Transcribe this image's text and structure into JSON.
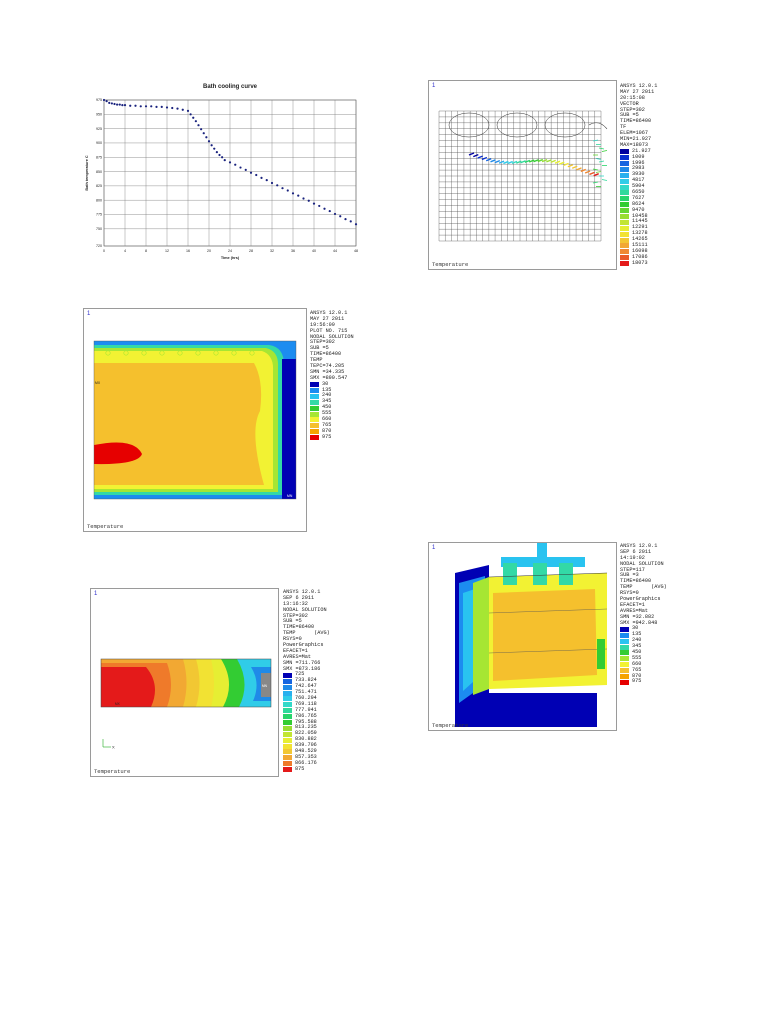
{
  "chart_data": {
    "type": "scatter",
    "title": "Bath cooling curve",
    "xlabel": "Time (hrs)",
    "ylabel": "Bath temperature C",
    "xlim": [
      0,
      48
    ],
    "ylim": [
      720,
      975
    ],
    "x_ticks": [
      0,
      4,
      8,
      12,
      16,
      20,
      24,
      28,
      32,
      36,
      40,
      44,
      48
    ],
    "y_ticks": [
      975,
      950,
      925,
      900,
      875,
      850,
      825,
      800,
      775,
      750,
      720
    ],
    "grid": true,
    "legend": "none",
    "series": [
      {
        "color": "#1a237e",
        "x": [
          0,
          0.5,
          1,
          1.5,
          2,
          2.5,
          3,
          3.5,
          4,
          5,
          6,
          7,
          8,
          9,
          10,
          11,
          12,
          13,
          14,
          15,
          16,
          16.5,
          17,
          17.5,
          18,
          18.5,
          19,
          19.5,
          20,
          20.5,
          21,
          21.5,
          22,
          22.5,
          23,
          24,
          25,
          26,
          27,
          28,
          29,
          30,
          31,
          32,
          33,
          34,
          35,
          36,
          37,
          38,
          39,
          40,
          41,
          42,
          43,
          44,
          45,
          46,
          47,
          48
        ],
        "y": [
          975,
          973,
          970,
          969,
          968,
          967,
          967,
          966,
          966,
          965,
          965,
          964,
          964,
          964,
          963,
          963,
          962,
          961,
          960,
          958,
          956,
          950,
          944,
          938,
          931,
          924,
          917,
          910,
          903,
          896,
          890,
          884,
          879,
          875,
          870,
          866,
          862,
          857,
          853,
          848,
          844,
          839,
          835,
          830,
          826,
          821,
          817,
          812,
          808,
          803,
          799,
          794,
          790,
          785,
          781,
          776,
          772,
          767,
          763,
          758
        ]
      }
    ]
  },
  "panels": {
    "vector": {
      "corner_mark": "1",
      "header": [
        "ANSYS 12.0.1",
        "MAY 27 2011",
        "20:15:08",
        "VECTOR",
        "STEP=302",
        "SUB =5",
        "TIME=86400",
        "TF",
        "ELEM=1067",
        "MIN=21.927",
        "MAX=18073"
      ],
      "levels": [
        "21.927",
        "1009",
        "1996",
        "2983",
        "3930",
        "4817",
        "5904",
        "6650",
        "7627",
        "8624",
        "9470",
        "10458",
        "11445",
        "12291",
        "13278",
        "14265",
        "15111",
        "16098",
        "17086",
        "18073"
      ],
      "colors": [
        "#0000a0",
        "#0a2fd0",
        "#1565e0",
        "#1f8ae8",
        "#29b0ee",
        "#30cce8",
        "#33d9c8",
        "#2fd99b",
        "#28d56b",
        "#33cc33",
        "#66d633",
        "#99dd33",
        "#c2e533",
        "#e6ee33",
        "#f2e233",
        "#f2c733",
        "#f2a833",
        "#ef8833",
        "#ea5a2a",
        "#e41a1a"
      ],
      "caption": "Temperature"
    },
    "nodal1": {
      "corner_mark": "1",
      "header": [
        "ANSYS 12.0.1",
        "MAY 27 2011",
        "19:56:09",
        "PLOT NO. 715",
        "NODAL SOLUTION",
        "STEP=302",
        "SUB =5",
        "TIME=86400",
        "TEMP",
        "TEPC=74.205",
        "SMN =34.335",
        "SMX =890.547"
      ],
      "levels": [
        "30",
        "135",
        "240",
        "345",
        "450",
        "555",
        "660",
        "765",
        "870",
        "975"
      ],
      "colors": [
        "#0000b4",
        "#1c8cf0",
        "#29c3f0",
        "#33d9a6",
        "#33cc33",
        "#a6e633",
        "#f2f233",
        "#f5c02d",
        "#f5a300",
        "#e60000"
      ],
      "mx_label": "MX",
      "mn_label": "MN",
      "caption": "Temperature"
    },
    "nodal2": {
      "corner_mark": "1",
      "header": [
        "ANSYS 12.0.1",
        "SEP 6 2011",
        "13:16:32",
        "NODAL SOLUTION",
        "STEP=302",
        "SUB =5",
        "TIME=86400",
        "TEMP      (AVG)",
        "RSYS=0",
        "PowerGraphics",
        "EFACET=1",
        "AVRES=Mat",
        "SMN =711.766",
        "SMX =873.186"
      ],
      "levels": [
        "725",
        "733.824",
        "742.647",
        "751.471",
        "760.294",
        "769.118",
        "777.941",
        "786.765",
        "795.588",
        "813.235",
        "822.059",
        "830.882",
        "839.706",
        "848.529",
        "857.353",
        "866.176",
        "875"
      ],
      "colors": [
        "#0000b4",
        "#1565e0",
        "#1f8ae8",
        "#29b0ee",
        "#30cce8",
        "#33d9c8",
        "#2fd99b",
        "#28d56b",
        "#33cc33",
        "#99dd33",
        "#c2e533",
        "#e6ee33",
        "#f2e233",
        "#f2c733",
        "#f2a833",
        "#ef7a2a",
        "#e41a1a"
      ],
      "mx_label": "MX",
      "mn_label": "MN",
      "axis_label": "X",
      "caption": "Temperature"
    },
    "nodal3": {
      "corner_mark": "1",
      "header": [
        "ANSYS 12.0.1",
        "SEP 6 2011",
        "14:19:02",
        "NODAL SOLUTION",
        "STEP=117",
        "SUB =3",
        "TIME=86400",
        "TEMP      (AVG)",
        "RSYS=0",
        "PowerGraphics",
        "EFACET=1",
        "AVRES=Mat",
        "SMN =32.882",
        "SMX =942.848"
      ],
      "levels": [
        "30",
        "135",
        "240",
        "345",
        "450",
        "555",
        "660",
        "765",
        "870",
        "975"
      ],
      "colors": [
        "#0000b4",
        "#1c8cf0",
        "#29c3f0",
        "#33d9a6",
        "#33cc33",
        "#a6e633",
        "#f2f233",
        "#f5c02d",
        "#f5a300",
        "#e60000"
      ],
      "caption": "Temperature"
    }
  }
}
